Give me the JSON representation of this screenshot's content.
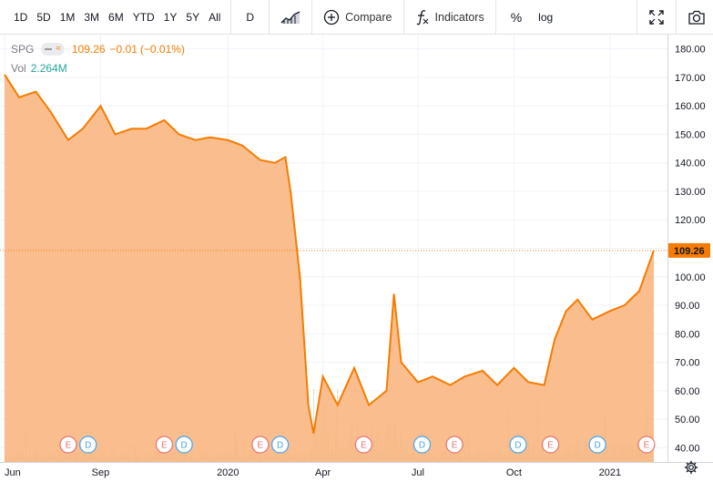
{
  "toolbar": {
    "ranges": [
      "1D",
      "5D",
      "1M",
      "3M",
      "6M",
      "YTD",
      "1Y",
      "5Y",
      "All"
    ],
    "interval": "D",
    "compare_label": "Compare",
    "indicators_label": "Indicators",
    "percent_label": "%",
    "log_label": "log"
  },
  "legend": {
    "symbol": "SPG",
    "price": "109.26",
    "change": "−0.01",
    "change_pct": "(−0.01%)",
    "vol_label": "Vol",
    "vol_value": "2.264M"
  },
  "colors": {
    "line": "#f57c00",
    "area": "#f9b27a",
    "price_tag": "#f57c00",
    "volume": "#d8e6c9",
    "earnings_marker": "#e57373",
    "dividend_marker": "#42a5f5"
  },
  "chart_data": {
    "type": "area",
    "symbol": "SPG",
    "x_tick_labels": [
      "Jun",
      "Sep",
      "2020",
      "Apr",
      "Jul",
      "Oct",
      "2021"
    ],
    "y_tick_labels": [
      "40.00",
      "50.00",
      "60.00",
      "70.00",
      "80.00",
      "90.00",
      "100.00",
      "110.00",
      "120.00",
      "130.00",
      "140.00",
      "150.00",
      "160.00",
      "170.00",
      "180.00"
    ],
    "ylim": [
      35,
      185
    ],
    "last_price": 109.26,
    "last_price_label": "109.26",
    "x_range": [
      "2019-06-01",
      "2021-02-12"
    ],
    "series": [
      {
        "x": [
          "2019-06-01",
          "2019-06-15",
          "2019-07-01",
          "2019-07-15",
          "2019-08-01",
          "2019-08-15",
          "2019-09-01",
          "2019-09-15",
          "2019-10-01",
          "2019-10-15",
          "2019-11-01",
          "2019-11-15",
          "2019-12-01",
          "2019-12-15",
          "2020-01-01",
          "2020-01-15",
          "2020-02-01",
          "2020-02-15",
          "2020-02-25",
          "2020-03-01",
          "2020-03-10",
          "2020-03-18",
          "2020-03-23",
          "2020-04-01",
          "2020-04-15",
          "2020-05-01",
          "2020-05-15",
          "2020-06-01",
          "2020-06-08",
          "2020-06-15",
          "2020-07-01",
          "2020-07-15",
          "2020-08-01",
          "2020-08-15",
          "2020-09-01",
          "2020-09-15",
          "2020-10-01",
          "2020-10-15",
          "2020-10-30",
          "2020-11-09",
          "2020-11-20",
          "2020-12-01",
          "2020-12-15",
          "2021-01-01",
          "2021-01-15",
          "2021-01-29",
          "2021-02-12"
        ],
        "values": [
          171,
          163,
          165,
          158,
          148,
          152,
          160,
          150,
          152,
          152,
          155,
          150,
          148,
          149,
          148,
          146,
          141,
          140,
          142,
          130,
          100,
          55,
          45,
          65,
          55,
          68,
          55,
          60,
          94,
          70,
          63,
          65,
          62,
          65,
          67,
          62,
          68,
          63,
          62,
          78,
          88,
          92,
          85,
          88,
          90,
          95,
          109.26
        ]
      }
    ],
    "event_markers": [
      {
        "type": "E",
        "x": "2019-08-01"
      },
      {
        "type": "D",
        "x": "2019-08-20"
      },
      {
        "type": "E",
        "x": "2019-11-01"
      },
      {
        "type": "D",
        "x": "2019-11-20"
      },
      {
        "type": "E",
        "x": "2020-02-01"
      },
      {
        "type": "D",
        "x": "2020-02-20"
      },
      {
        "type": "E",
        "x": "2020-05-10"
      },
      {
        "type": "D",
        "x": "2020-07-05"
      },
      {
        "type": "E",
        "x": "2020-08-05"
      },
      {
        "type": "D",
        "x": "2020-10-05"
      },
      {
        "type": "E",
        "x": "2020-11-05"
      },
      {
        "type": "D",
        "x": "2020-12-20"
      },
      {
        "type": "E",
        "x": "2021-02-05"
      }
    ]
  }
}
